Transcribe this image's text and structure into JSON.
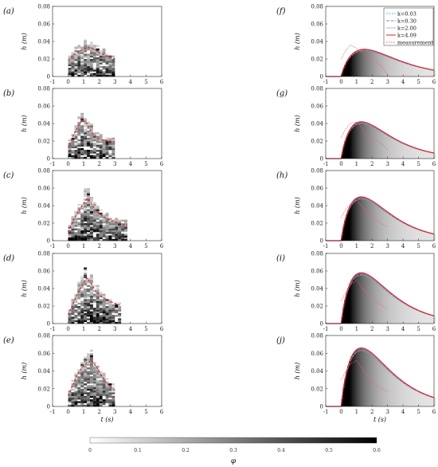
{
  "figure": {
    "colorbar": {
      "label": "φ",
      "ticks": [
        "0",
        "0.1",
        "0.2",
        "0.3",
        "0.4",
        "0.5",
        "0.6"
      ],
      "range": [
        0,
        0.6
      ]
    },
    "colors": {
      "k003": "#35c4d6",
      "k030": "#8a8f9e",
      "k200": "#d9a0e8",
      "k409": "#e0202a",
      "measurement": "#ff5a7a",
      "profile_left": "#d81b1b"
    }
  },
  "chart_data": [
    {
      "type": "heatmap",
      "panel_label": "(a)",
      "xlim": [
        -1,
        6
      ],
      "ylim": [
        0,
        0.08
      ],
      "xlabel": "",
      "ylabel": "h (m)",
      "x_ticks": [
        "-1",
        "0",
        "1",
        "2",
        "3",
        "4",
        "5",
        "6"
      ],
      "y_ticks": [
        "0",
        "0.02",
        "0.04",
        "0.06",
        "0.08"
      ],
      "profile": {
        "x": [
          0.0,
          0.3,
          0.6,
          1.0,
          1.3,
          1.7,
          2.0,
          2.4,
          2.8,
          3.0
        ],
        "y": [
          0.018,
          0.024,
          0.028,
          0.031,
          0.033,
          0.031,
          0.027,
          0.024,
          0.022,
          0.02
        ]
      }
    },
    {
      "type": "heatmap",
      "panel_label": "(b)",
      "xlim": [
        -1,
        6
      ],
      "ylim": [
        0,
        0.08
      ],
      "xlabel": "",
      "ylabel": "h (m)",
      "x_ticks": [
        "-1",
        "0",
        "1",
        "2",
        "3",
        "4",
        "5",
        "6"
      ],
      "y_ticks": [
        "0",
        "0.02",
        "0.04",
        "0.06",
        "0.08"
      ],
      "profile": {
        "x": [
          0.0,
          0.3,
          0.6,
          0.9,
          1.2,
          1.5,
          1.8,
          2.2,
          2.6,
          3.0
        ],
        "y": [
          0.012,
          0.025,
          0.036,
          0.044,
          0.04,
          0.03,
          0.024,
          0.021,
          0.02,
          0.019
        ]
      }
    },
    {
      "type": "heatmap",
      "panel_label": "(c)",
      "xlim": [
        -1,
        6
      ],
      "ylim": [
        0,
        0.08
      ],
      "xlabel": "",
      "ylabel": "h (m)",
      "x_ticks": [
        "-1",
        "0",
        "1",
        "2",
        "3",
        "4",
        "5",
        "6"
      ],
      "y_ticks": [
        "0",
        "0.02",
        "0.04",
        "0.06",
        "0.08"
      ],
      "profile": {
        "x": [
          0.0,
          0.3,
          0.6,
          0.9,
          1.2,
          1.5,
          1.8,
          2.2,
          2.6,
          3.0,
          3.4,
          3.8
        ],
        "y": [
          0.01,
          0.022,
          0.032,
          0.04,
          0.048,
          0.042,
          0.034,
          0.028,
          0.024,
          0.021,
          0.019,
          0.018
        ]
      }
    },
    {
      "type": "heatmap",
      "panel_label": "(d)",
      "xlim": [
        -1,
        6
      ],
      "ylim": [
        0,
        0.08
      ],
      "xlabel": "",
      "ylabel": "h (m)",
      "x_ticks": [
        "-1",
        "0",
        "1",
        "2",
        "3",
        "4",
        "5",
        "6"
      ],
      "y_ticks": [
        "0",
        "0.02",
        "0.04",
        "0.06",
        "0.08"
      ],
      "profile": {
        "x": [
          0.0,
          0.3,
          0.6,
          0.9,
          1.2,
          1.5,
          1.8,
          2.2,
          2.6,
          3.0,
          3.3
        ],
        "y": [
          0.01,
          0.022,
          0.034,
          0.044,
          0.052,
          0.045,
          0.036,
          0.03,
          0.026,
          0.023,
          0.021
        ]
      }
    },
    {
      "type": "heatmap",
      "panel_label": "(e)",
      "xlim": [
        -1,
        6
      ],
      "ylim": [
        0,
        0.08
      ],
      "xlabel": "t (s)",
      "ylabel": "h (m)",
      "x_ticks": [
        "-1",
        "0",
        "1",
        "2",
        "3",
        "4",
        "5",
        "6"
      ],
      "y_ticks": [
        "0",
        "0.02",
        "0.04",
        "0.06",
        "0.08"
      ],
      "profile": {
        "x": [
          0.0,
          0.3,
          0.6,
          0.9,
          1.2,
          1.5,
          1.8,
          2.1,
          2.4,
          2.7,
          3.0
        ],
        "y": [
          0.012,
          0.024,
          0.036,
          0.044,
          0.049,
          0.052,
          0.045,
          0.036,
          0.028,
          0.022,
          0.018
        ]
      }
    },
    {
      "type": "line",
      "panel_label": "(f)",
      "xlim": [
        -1,
        6
      ],
      "ylim": [
        0,
        0.08
      ],
      "xlabel": "",
      "ylabel": "h (m)",
      "x_ticks": [
        "-1",
        "0",
        "1",
        "2",
        "3",
        "4",
        "5",
        "6"
      ],
      "y_ticks": [
        "0",
        "0.02",
        "0.04",
        "0.06",
        "0.08"
      ],
      "legend": {
        "placement": "top-right",
        "entries": [
          "k=0.03",
          "k=0.30",
          "k=2.00",
          "k=4.09",
          "measurement"
        ]
      },
      "peak": 0.031,
      "peak_t": 1.5,
      "measurement": {
        "x": [
          0.0,
          0.3,
          0.6,
          1.0,
          1.4,
          1.8,
          2.2,
          2.6,
          2.8,
          3.0
        ],
        "y": [
          0.02,
          0.03,
          0.036,
          0.032,
          0.027,
          0.02,
          0.017,
          0.012,
          0.006,
          0.002
        ]
      }
    },
    {
      "type": "line",
      "panel_label": "(g)",
      "xlim": [
        -1,
        6
      ],
      "ylim": [
        0,
        0.08
      ],
      "xlabel": "",
      "ylabel": "h (m)",
      "x_ticks": [
        "-1",
        "0",
        "1",
        "2",
        "3",
        "4",
        "5",
        "6"
      ],
      "y_ticks": [
        "0",
        "0.02",
        "0.04",
        "0.06",
        "0.08"
      ],
      "peak": 0.042,
      "peak_t": 1.3,
      "measurement": {
        "x": [
          0.0,
          0.3,
          0.6,
          1.0,
          1.3,
          1.6,
          2.0,
          2.4,
          2.8,
          3.0
        ],
        "y": [
          0.024,
          0.034,
          0.04,
          0.042,
          0.036,
          0.025,
          0.022,
          0.02,
          0.014,
          0.01
        ]
      }
    },
    {
      "type": "line",
      "panel_label": "(h)",
      "xlim": [
        -1,
        6
      ],
      "ylim": [
        0,
        0.08
      ],
      "xlabel": "",
      "ylabel": "h (m)",
      "x_ticks": [
        "-1",
        "0",
        "1",
        "2",
        "3",
        "4",
        "5",
        "6"
      ],
      "y_ticks": [
        "0",
        "0.02",
        "0.04",
        "0.06",
        "0.08"
      ],
      "peak": 0.05,
      "peak_t": 1.3,
      "measurement": {
        "x": [
          0.0,
          0.3,
          0.6,
          1.0,
          1.3,
          1.7,
          2.2,
          2.6,
          3.0
        ],
        "y": [
          0.026,
          0.036,
          0.042,
          0.046,
          0.04,
          0.03,
          0.024,
          0.02,
          0.016
        ]
      }
    },
    {
      "type": "line",
      "panel_label": "(i)",
      "xlim": [
        -1,
        6
      ],
      "ylim": [
        0,
        0.08
      ],
      "xlabel": "",
      "ylabel": "h (m)",
      "x_ticks": [
        "-1",
        "0",
        "1",
        "2",
        "3",
        "4",
        "5",
        "6"
      ],
      "y_ticks": [
        "0",
        "0.02",
        "0.04",
        "0.06",
        "0.08"
      ],
      "peak": 0.058,
      "peak_t": 1.3,
      "measurement": {
        "x": [
          0.0,
          0.3,
          0.6,
          1.0,
          1.3,
          1.7,
          2.2,
          2.6,
          3.0
        ],
        "y": [
          0.026,
          0.036,
          0.044,
          0.05,
          0.042,
          0.032,
          0.026,
          0.021,
          0.017
        ]
      }
    },
    {
      "type": "line",
      "panel_label": "(j)",
      "xlim": [
        -1,
        6
      ],
      "ylim": [
        0,
        0.08
      ],
      "xlabel": "t (s)",
      "ylabel": "h (m)",
      "x_ticks": [
        "-1",
        "0",
        "1",
        "2",
        "3",
        "4",
        "5",
        "6"
      ],
      "y_ticks": [
        "0",
        "0.02",
        "0.04",
        "0.06",
        "0.08"
      ],
      "peak": 0.066,
      "peak_t": 1.3,
      "measurement": {
        "x": [
          0.0,
          0.3,
          0.6,
          1.0,
          1.3,
          1.7,
          2.1,
          2.5,
          3.0
        ],
        "y": [
          0.03,
          0.04,
          0.048,
          0.052,
          0.044,
          0.034,
          0.026,
          0.021,
          0.017
        ]
      }
    }
  ]
}
